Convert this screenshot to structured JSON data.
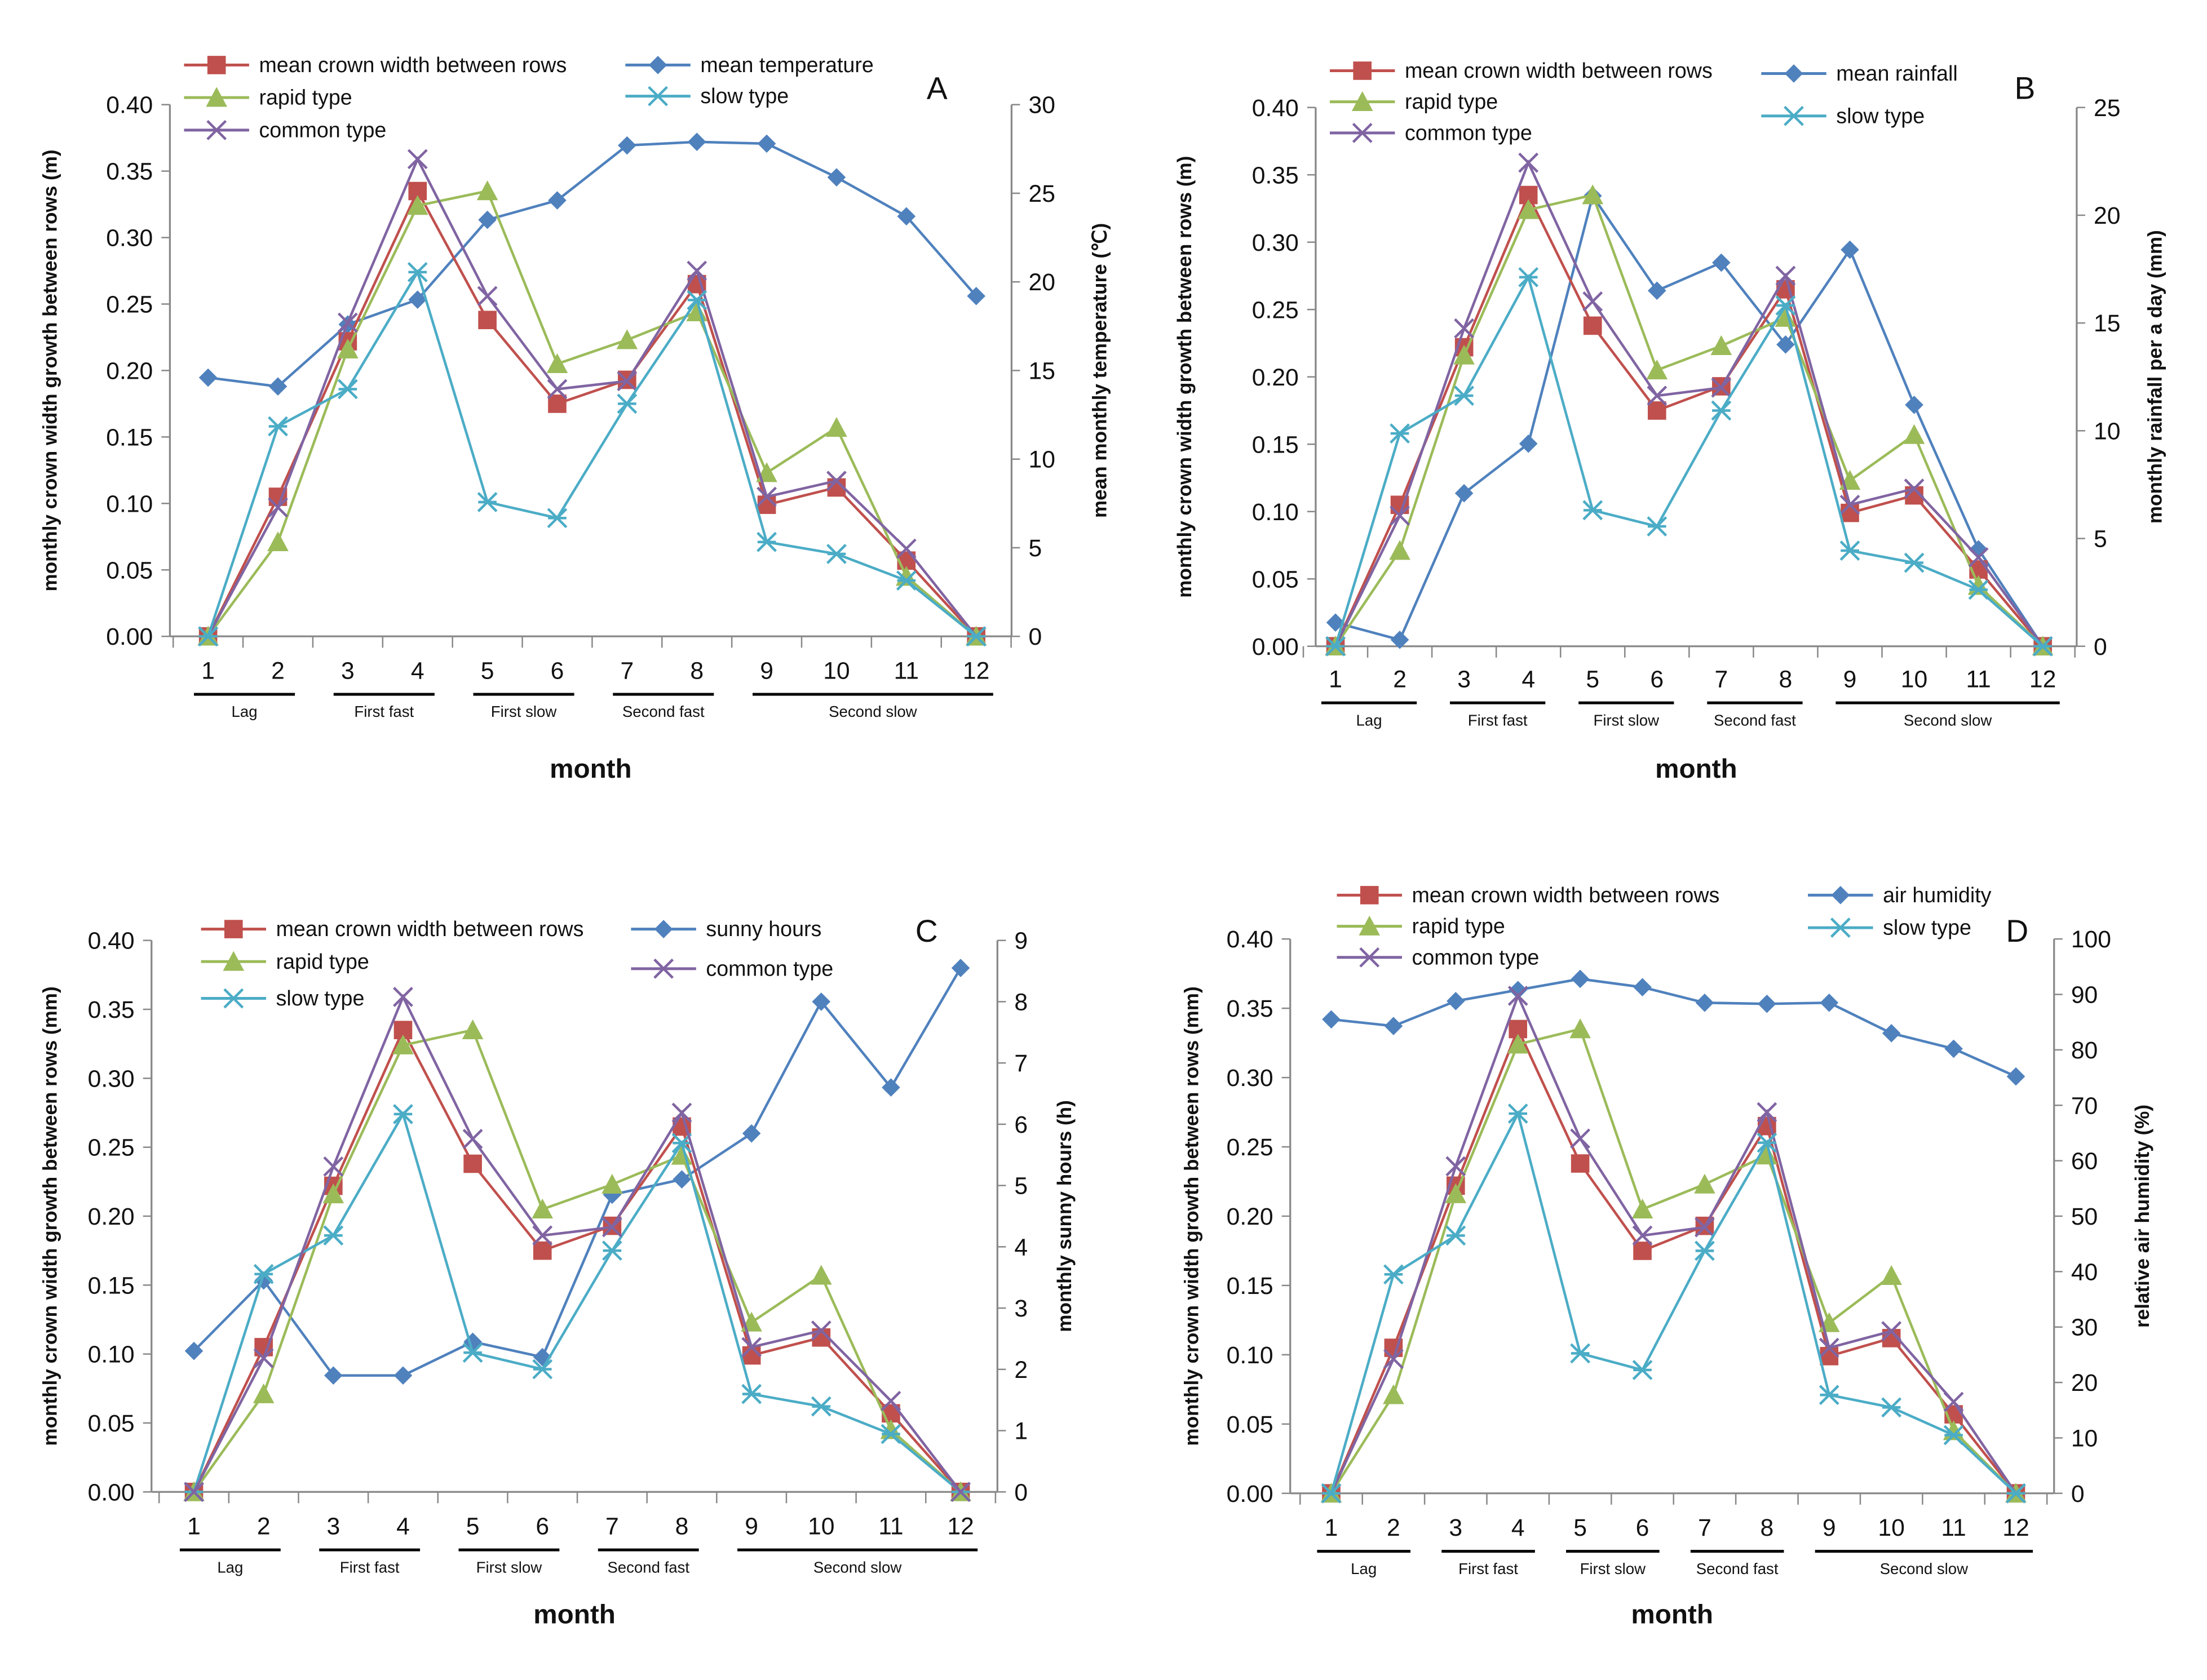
{
  "chart_data": [
    {
      "type": "line",
      "panel_label": "A",
      "x": [
        1,
        2,
        3,
        4,
        5,
        6,
        7,
        8,
        9,
        10,
        11,
        12
      ],
      "xlabel": "month",
      "ylabel": "monthly crown width growth between rows (m)",
      "ylim": [
        0,
        0.4
      ],
      "y2label": "mean monthly temperature (℃)",
      "y2lim": [
        0,
        30
      ],
      "phases": [
        {
          "label": "Lag",
          "months": [
            1,
            2
          ]
        },
        {
          "label": "First fast",
          "months": [
            3,
            4
          ]
        },
        {
          "label": "First slow",
          "months": [
            5,
            6
          ]
        },
        {
          "label": "Second fast",
          "months": [
            7,
            8
          ]
        },
        {
          "label": "Second slow",
          "months": [
            9,
            12
          ]
        }
      ],
      "series": [
        {
          "name": "mean crown width between rows",
          "marker": "square",
          "color": "#c0504d",
          "axis": "left",
          "values": [
            0,
            0.105,
            0.222,
            0.335,
            0.238,
            0.175,
            0.193,
            0.265,
            0.099,
            0.112,
            0.057,
            0
          ]
        },
        {
          "name": "rapid type",
          "marker": "triangle",
          "color": "#9bbb59",
          "axis": "left",
          "values": [
            0,
            0.071,
            0.216,
            0.324,
            0.335,
            0.205,
            0.223,
            0.244,
            0.123,
            0.157,
            0.045,
            0
          ]
        },
        {
          "name": "common type",
          "marker": "x",
          "color": "#8064a2",
          "axis": "left",
          "values": [
            0,
            0.097,
            0.236,
            0.359,
            0.256,
            0.186,
            0.192,
            0.275,
            0.105,
            0.117,
            0.066,
            0
          ]
        },
        {
          "name": "mean temperature",
          "marker": "diamond",
          "color": "#4f81bd",
          "axis": "right",
          "values": [
            14.6,
            14.1,
            17.6,
            19.0,
            23.5,
            24.6,
            27.7,
            27.9,
            27.8,
            25.9,
            23.7,
            19.2
          ]
        },
        {
          "name": "slow type",
          "marker": "star",
          "color": "#4bacc6",
          "axis": "left",
          "values": [
            0,
            0.158,
            0.186,
            0.274,
            0.101,
            0.089,
            0.175,
            0.253,
            0.071,
            0.062,
            0.042,
            0
          ]
        }
      ]
    },
    {
      "type": "line",
      "panel_label": "B",
      "x": [
        1,
        2,
        3,
        4,
        5,
        6,
        7,
        8,
        9,
        10,
        11,
        12
      ],
      "xlabel": "month",
      "ylabel": "monthly crown width growth between rows (m)",
      "ylim": [
        0,
        0.4
      ],
      "y2label": "monthly rainfall per a day (mm)",
      "y2lim": [
        0,
        25
      ],
      "phases": [
        {
          "label": "Lag",
          "months": [
            1,
            2
          ]
        },
        {
          "label": "First fast",
          "months": [
            3,
            4
          ]
        },
        {
          "label": "First slow",
          "months": [
            5,
            6
          ]
        },
        {
          "label": "Second fast",
          "months": [
            7,
            8
          ]
        },
        {
          "label": "Second slow",
          "months": [
            9,
            12
          ]
        }
      ],
      "series": [
        {
          "name": "mean crown width between rows",
          "marker": "square",
          "color": "#c0504d",
          "axis": "left",
          "values": [
            0,
            0.105,
            0.222,
            0.335,
            0.238,
            0.175,
            0.193,
            0.265,
            0.099,
            0.112,
            0.057,
            0
          ]
        },
        {
          "name": "rapid type",
          "marker": "triangle",
          "color": "#9bbb59",
          "axis": "left",
          "values": [
            0,
            0.071,
            0.216,
            0.324,
            0.335,
            0.205,
            0.223,
            0.244,
            0.123,
            0.157,
            0.045,
            0
          ]
        },
        {
          "name": "common type",
          "marker": "x",
          "color": "#8064a2",
          "axis": "left",
          "values": [
            0,
            0.097,
            0.236,
            0.359,
            0.256,
            0.186,
            0.192,
            0.275,
            0.105,
            0.117,
            0.066,
            0
          ]
        },
        {
          "name": "mean rainfall",
          "marker": "diamond",
          "color": "#4f81bd",
          "axis": "right",
          "values": [
            1.1,
            0.3,
            7.1,
            9.4,
            20.9,
            16.5,
            17.8,
            14.0,
            18.4,
            11.2,
            4.5,
            0
          ]
        },
        {
          "name": "slow type",
          "marker": "star",
          "color": "#4bacc6",
          "axis": "left",
          "values": [
            0,
            0.158,
            0.186,
            0.274,
            0.101,
            0.089,
            0.175,
            0.253,
            0.071,
            0.062,
            0.042,
            0
          ]
        }
      ]
    },
    {
      "type": "line",
      "panel_label": "C",
      "x": [
        1,
        2,
        3,
        4,
        5,
        6,
        7,
        8,
        9,
        10,
        11,
        12
      ],
      "xlabel": "month",
      "ylabel": "monthly crown width growth between rows (mm)",
      "ylim": [
        0,
        0.4
      ],
      "y2label": "monthly sunny hours (h)",
      "y2lim": [
        0,
        9
      ],
      "phases": [
        {
          "label": "Lag",
          "months": [
            1,
            2
          ]
        },
        {
          "label": "First fast",
          "months": [
            3,
            4
          ]
        },
        {
          "label": "First  slow",
          "months": [
            5,
            6
          ]
        },
        {
          "label": "Second fast",
          "months": [
            7,
            8
          ]
        },
        {
          "label": "Second  slow",
          "months": [
            9,
            12
          ]
        }
      ],
      "series": [
        {
          "name": "mean crown width between rows",
          "marker": "square",
          "color": "#c0504d",
          "axis": "left",
          "values": [
            0,
            0.105,
            0.222,
            0.335,
            0.238,
            0.175,
            0.193,
            0.265,
            0.099,
            0.112,
            0.057,
            0
          ]
        },
        {
          "name": "rapid type",
          "marker": "triangle",
          "color": "#9bbb59",
          "axis": "left",
          "values": [
            0,
            0.071,
            0.216,
            0.324,
            0.335,
            0.205,
            0.223,
            0.244,
            0.123,
            0.157,
            0.045,
            0
          ]
        },
        {
          "name": "slow type",
          "marker": "star",
          "color": "#4bacc6",
          "axis": "left",
          "values": [
            0,
            0.158,
            0.186,
            0.274,
            0.101,
            0.089,
            0.175,
            0.253,
            0.071,
            0.062,
            0.042,
            0
          ]
        },
        {
          "name": "sunny hours",
          "marker": "diamond",
          "color": "#4f81bd",
          "axis": "right",
          "values": [
            2.3,
            3.45,
            1.9,
            1.9,
            2.45,
            2.2,
            4.85,
            5.1,
            5.85,
            8.0,
            6.6,
            8.55
          ]
        },
        {
          "name": "common type",
          "marker": "x",
          "color": "#8064a2",
          "axis": "left",
          "values": [
            0,
            0.097,
            0.236,
            0.359,
            0.256,
            0.186,
            0.192,
            0.275,
            0.105,
            0.117,
            0.066,
            0
          ]
        }
      ]
    },
    {
      "type": "line",
      "panel_label": "D",
      "x": [
        1,
        2,
        3,
        4,
        5,
        6,
        7,
        8,
        9,
        10,
        11,
        12
      ],
      "xlabel": "month",
      "ylabel": "monthly crown width growth between rows (mm)",
      "ylim": [
        0,
        0.4
      ],
      "y2label": "relative air humidity (%)",
      "y2lim": [
        0,
        100
      ],
      "phases": [
        {
          "label": "Lag",
          "months": [
            1,
            2
          ]
        },
        {
          "label": "First fast",
          "months": [
            3,
            4
          ]
        },
        {
          "label": "First slow",
          "months": [
            5,
            6
          ]
        },
        {
          "label": "Second fast",
          "months": [
            7,
            8
          ]
        },
        {
          "label": "Second  slow",
          "months": [
            9,
            12
          ]
        }
      ],
      "series": [
        {
          "name": "mean crown width between rows",
          "marker": "square",
          "color": "#c0504d",
          "axis": "left",
          "values": [
            0,
            0.105,
            0.222,
            0.335,
            0.238,
            0.175,
            0.193,
            0.265,
            0.099,
            0.112,
            0.057,
            0
          ]
        },
        {
          "name": "rapid type",
          "marker": "triangle",
          "color": "#9bbb59",
          "axis": "left",
          "values": [
            0,
            0.071,
            0.216,
            0.324,
            0.335,
            0.205,
            0.223,
            0.244,
            0.123,
            0.157,
            0.045,
            0
          ]
        },
        {
          "name": "common type",
          "marker": "x",
          "color": "#8064a2",
          "axis": "left",
          "values": [
            0,
            0.097,
            0.236,
            0.359,
            0.256,
            0.186,
            0.192,
            0.275,
            0.105,
            0.117,
            0.066,
            0
          ]
        },
        {
          "name": "air humidity",
          "marker": "diamond",
          "color": "#4f81bd",
          "axis": "right",
          "values": [
            85.5,
            84.3,
            88.8,
            90.8,
            92.8,
            91.3,
            88.5,
            88.3,
            88.5,
            83.0,
            80.2,
            75.2
          ]
        },
        {
          "name": "slow type",
          "marker": "star",
          "color": "#4bacc6",
          "axis": "left",
          "values": [
            0,
            0.158,
            0.186,
            0.274,
            0.101,
            0.089,
            0.175,
            0.253,
            0.071,
            0.062,
            0.042,
            0
          ]
        }
      ]
    }
  ]
}
